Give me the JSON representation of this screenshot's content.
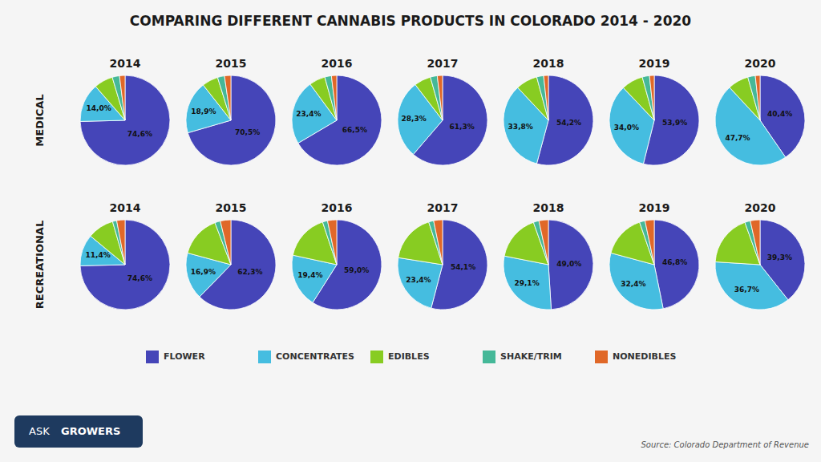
{
  "title": "COMPARING DIFFERENT CANNABIS PRODUCTS IN COLORADO 2014 - 2020",
  "annotations": [
    "MEDICAL",
    "RECREATIONAL",
    "Source: Colorado Department of Revenue",
    "ASK",
    "GROWERS"
  ],
  "chart_data": [
    {
      "type": "pie",
      "title": "2014",
      "categories": [
        "FLOWER",
        "CONCENTRATES",
        "EDIBLES",
        "SHAKE/TRIM",
        "NONEDIBLES"
      ],
      "values": [
        74.6,
        14.0,
        6.8,
        2.6,
        2.0
      ],
      "value_labels": [
        "74,6%",
        "14,0%",
        null,
        null,
        null
      ],
      "colors": [
        "#4545b8",
        "#45bde0",
        "#88cc22",
        "#45b898",
        "#e06828"
      ],
      "data_labels": true,
      "legend": "bottom"
    },
    {
      "type": "pie",
      "title": "2015",
      "categories": [
        "FLOWER",
        "CONCENTRATES",
        "EDIBLES",
        "SHAKE/TRIM",
        "NONEDIBLES"
      ],
      "values": [
        70.5,
        18.9,
        5.8,
        2.5,
        2.3
      ],
      "value_labels": [
        "70,5%",
        "18,9%",
        null,
        null,
        null
      ],
      "colors": [
        "#4545b8",
        "#45bde0",
        "#88cc22",
        "#45b898",
        "#e06828"
      ],
      "data_labels": true
    },
    {
      "type": "pie",
      "title": "2016",
      "categories": [
        "FLOWER",
        "CONCENTRATES",
        "EDIBLES",
        "SHAKE/TRIM",
        "NONEDIBLES"
      ],
      "values": [
        66.5,
        23.4,
        5.8,
        2.4,
        1.9
      ],
      "value_labels": [
        "66,5%",
        "23,4%",
        null,
        null,
        null
      ],
      "colors": [
        "#4545b8",
        "#45bde0",
        "#88cc22",
        "#45b898",
        "#e06828"
      ],
      "data_labels": true
    },
    {
      "type": "pie",
      "title": "2017",
      "categories": [
        "FLOWER",
        "CONCENTRATES",
        "EDIBLES",
        "SHAKE/TRIM",
        "NONEDIBLES"
      ],
      "values": [
        61.3,
        28.3,
        6.0,
        2.5,
        1.9
      ],
      "value_labels": [
        "61,3%",
        "28,3%",
        null,
        null,
        null
      ],
      "colors": [
        "#4545b8",
        "#45bde0",
        "#88cc22",
        "#45b898",
        "#e06828"
      ],
      "data_labels": true
    },
    {
      "type": "pie",
      "title": "2018",
      "categories": [
        "FLOWER",
        "CONCENTRATES",
        "EDIBLES",
        "SHAKE/TRIM",
        "NONEDIBLES"
      ],
      "values": [
        54.2,
        33.8,
        7.8,
        2.5,
        1.7
      ],
      "value_labels": [
        "54,2%",
        "33,8%",
        null,
        null,
        null
      ],
      "colors": [
        "#4545b8",
        "#45bde0",
        "#88cc22",
        "#45b898",
        "#e06828"
      ],
      "data_labels": true
    },
    {
      "type": "pie",
      "title": "2019",
      "categories": [
        "FLOWER",
        "CONCENTRATES",
        "EDIBLES",
        "SHAKE/TRIM",
        "NONEDIBLES"
      ],
      "values": [
        53.9,
        34.0,
        7.8,
        2.6,
        1.7
      ],
      "value_labels": [
        "53,9%",
        "34,0%",
        null,
        null,
        null
      ],
      "colors": [
        "#4545b8",
        "#45bde0",
        "#88cc22",
        "#45b898",
        "#e06828"
      ],
      "data_labels": true
    },
    {
      "type": "pie",
      "title": "2020",
      "categories": [
        "FLOWER",
        "CONCENTRATES",
        "EDIBLES",
        "SHAKE/TRIM",
        "NONEDIBLES"
      ],
      "values": [
        40.4,
        47.7,
        7.5,
        2.7,
        1.7
      ],
      "value_labels": [
        "40,4%",
        "47,7%",
        null,
        null,
        null
      ],
      "colors": [
        "#4545b8",
        "#45bde0",
        "#88cc22",
        "#45b898",
        "#e06828"
      ],
      "data_labels": true
    },
    {
      "type": "pie",
      "title": "2014",
      "categories": [
        "FLOWER",
        "CONCENTRATES",
        "EDIBLES",
        "SHAKE/TRIM",
        "NONEDIBLES"
      ],
      "values": [
        74.6,
        11.4,
        9.5,
        1.5,
        3.0
      ],
      "value_labels": [
        "74,6%",
        "11,4%",
        null,
        null,
        null
      ],
      "colors": [
        "#4545b8",
        "#45bde0",
        "#88cc22",
        "#45b898",
        "#e06828"
      ],
      "data_labels": true
    },
    {
      "type": "pie",
      "title": "2015",
      "categories": [
        "FLOWER",
        "CONCENTRATES",
        "EDIBLES",
        "SHAKE/TRIM",
        "NONEDIBLES"
      ],
      "values": [
        62.3,
        16.9,
        15.0,
        2.0,
        3.8
      ],
      "value_labels": [
        "62,3%",
        "16,9%",
        null,
        null,
        null
      ],
      "colors": [
        "#4545b8",
        "#45bde0",
        "#88cc22",
        "#45b898",
        "#e06828"
      ],
      "data_labels": true
    },
    {
      "type": "pie",
      "title": "2016",
      "categories": [
        "FLOWER",
        "CONCENTRATES",
        "EDIBLES",
        "SHAKE/TRIM",
        "NONEDIBLES"
      ],
      "values": [
        59.0,
        19.4,
        16.5,
        1.8,
        3.3
      ],
      "value_labels": [
        "59,0%",
        "19,4%",
        null,
        null,
        null
      ],
      "colors": [
        "#4545b8",
        "#45bde0",
        "#88cc22",
        "#45b898",
        "#e06828"
      ],
      "data_labels": true
    },
    {
      "type": "pie",
      "title": "2017",
      "categories": [
        "FLOWER",
        "CONCENTRATES",
        "EDIBLES",
        "SHAKE/TRIM",
        "NONEDIBLES"
      ],
      "values": [
        54.1,
        23.4,
        17.5,
        1.8,
        3.2
      ],
      "value_labels": [
        "54,1%",
        "23,4%",
        null,
        null,
        null
      ],
      "colors": [
        "#4545b8",
        "#45bde0",
        "#88cc22",
        "#45b898",
        "#e06828"
      ],
      "data_labels": true
    },
    {
      "type": "pie",
      "title": "2018",
      "categories": [
        "FLOWER",
        "CONCENTRATES",
        "EDIBLES",
        "SHAKE/TRIM",
        "NONEDIBLES"
      ],
      "values": [
        49.0,
        29.1,
        16.5,
        2.0,
        3.4
      ],
      "value_labels": [
        "49,0%",
        "29,1%",
        null,
        null,
        null
      ],
      "colors": [
        "#4545b8",
        "#45bde0",
        "#88cc22",
        "#45b898",
        "#e06828"
      ],
      "data_labels": true
    },
    {
      "type": "pie",
      "title": "2019",
      "categories": [
        "FLOWER",
        "CONCENTRATES",
        "EDIBLES",
        "SHAKE/TRIM",
        "NONEDIBLES"
      ],
      "values": [
        46.8,
        32.4,
        15.5,
        2.0,
        3.3
      ],
      "value_labels": [
        "46,8%",
        "32,4%",
        null,
        null,
        null
      ],
      "colors": [
        "#4545b8",
        "#45bde0",
        "#88cc22",
        "#45b898",
        "#e06828"
      ],
      "data_labels": true
    },
    {
      "type": "pie",
      "title": "2020",
      "categories": [
        "FLOWER",
        "CONCENTRATES",
        "EDIBLES",
        "SHAKE/TRIM",
        "NONEDIBLES"
      ],
      "values": [
        39.3,
        36.7,
        18.5,
        2.0,
        3.5
      ],
      "value_labels": [
        "39,3%",
        "36,7%",
        null,
        null,
        null
      ],
      "colors": [
        "#4545b8",
        "#45bde0",
        "#88cc22",
        "#45b898",
        "#e06828"
      ],
      "data_labels": true
    }
  ]
}
